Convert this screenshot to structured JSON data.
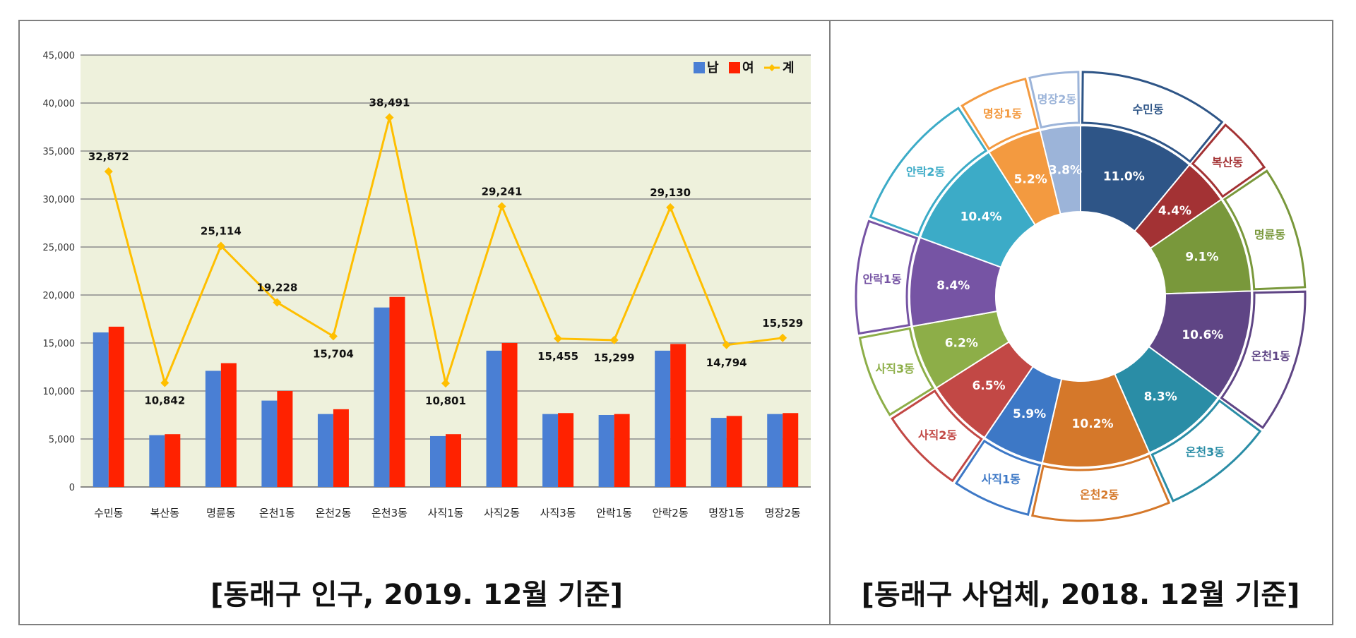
{
  "left_caption": "[동래구 인구, 2019. 12월 기준]",
  "right_caption": "[동래구 사업체, 2018. 12월 기준]",
  "chart_data": [
    {
      "type": "bar",
      "caption": "[동래구 인구, 2019. 12월 기준]",
      "categories": [
        "수민동",
        "복산동",
        "명륜동",
        "온천1동",
        "온천2동",
        "온천3동",
        "사직1동",
        "사직2동",
        "사직3동",
        "안락1동",
        "안락2동",
        "명장1동",
        "명장2동"
      ],
      "ylim": [
        0,
        45000
      ],
      "yticks": [
        "0",
        "5,000",
        "10,000",
        "15,000",
        "20,000",
        "25,000",
        "30,000",
        "35,000",
        "40,000",
        "45,000"
      ],
      "ytick_values": [
        0,
        5000,
        10000,
        15000,
        20000,
        25000,
        30000,
        35000,
        40000,
        45000
      ],
      "grid": true,
      "legend_position": "top-right",
      "series": [
        {
          "name": "남",
          "type": "bar",
          "color": "#4a7fd4",
          "values": [
            16100,
            5400,
            12100,
            9000,
            7600,
            18700,
            5300,
            14200,
            7600,
            7500,
            14200,
            7200,
            7600
          ]
        },
        {
          "name": "여",
          "type": "bar",
          "color": "#ff2200",
          "values": [
            16700,
            5500,
            12900,
            10000,
            8100,
            19800,
            5500,
            15000,
            7700,
            7600,
            14900,
            7400,
            7700
          ]
        },
        {
          "name": "계",
          "type": "line",
          "color": "#ffbf00",
          "values": [
            32872,
            10842,
            25114,
            19228,
            15704,
            38491,
            10801,
            29241,
            15455,
            15299,
            29130,
            14794,
            15529
          ]
        }
      ],
      "data_labels": [
        "32,872",
        "10,842",
        "25,114",
        "19,228",
        "15,704",
        "38,491",
        "10,801",
        "29,241",
        "15,455",
        "15,299",
        "29,130",
        "14,794",
        "15,529"
      ]
    },
    {
      "type": "pie",
      "subtype": "donut",
      "caption": "[동래구 사업체, 2018. 12월 기준]",
      "categories": [
        "수민동",
        "복산동",
        "명륜동",
        "온천1동",
        "온천3동",
        "온천2동",
        "사직1동",
        "사직2동",
        "사직3동",
        "안락1동",
        "안락2동",
        "명장1동",
        "명장2동"
      ],
      "values": [
        11.0,
        4.4,
        9.1,
        10.6,
        8.3,
        10.2,
        5.9,
        6.5,
        6.2,
        8.4,
        10.4,
        5.2,
        3.8
      ],
      "labels": [
        "11.0%",
        "4.4%",
        "9.1%",
        "10.6%",
        "8.3%",
        "10.2%",
        "5.9%",
        "6.5%",
        "6.2%",
        "8.4%",
        "10.4%",
        "5.2%",
        "3.8%"
      ],
      "colors": [
        "#2e5587",
        "#a33234",
        "#79983b",
        "#5f4585",
        "#2a8da6",
        "#d5782a",
        "#3d78c6",
        "#c24845",
        "#8dae48",
        "#7654a4",
        "#3cabc7",
        "#f39a40",
        "#9cb4d9"
      ]
    }
  ]
}
